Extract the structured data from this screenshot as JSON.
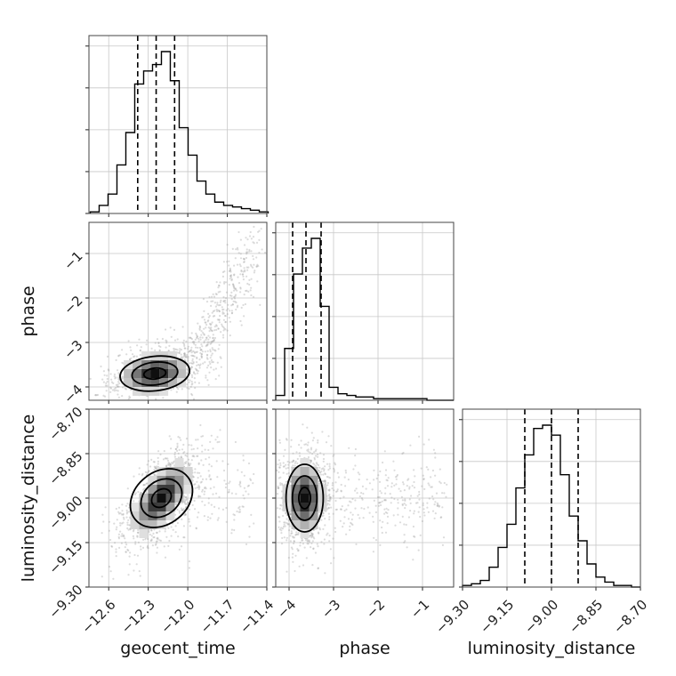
{
  "chart_data": {
    "type": "corner",
    "parameters": [
      "geocent_time",
      "phase",
      "luminosity_distance"
    ],
    "axes": {
      "geocent_time": {
        "label": "geocent_time",
        "range": [
          -12.75,
          -11.4
        ],
        "ticks": [
          -12.6,
          -12.3,
          -12.0,
          -11.7,
          -11.4
        ],
        "tick_labels": [
          "−12.6",
          "−12.3",
          "−12.0",
          "−11.7",
          "−11.4"
        ]
      },
      "phase": {
        "label": "phase",
        "range": [
          -4.3,
          -0.3
        ],
        "ticks": [
          -4,
          -3,
          -2,
          -1
        ],
        "tick_labels": [
          "−4",
          "−3",
          "−2",
          "−1"
        ]
      },
      "luminosity_distance": {
        "label": "luminosity_distance",
        "range": [
          -9.3,
          -8.7
        ],
        "ticks": [
          -9.3,
          -9.15,
          -9.0,
          -8.85,
          -8.7
        ],
        "tick_labels": [
          "−9.30",
          "−9.15",
          "−9.00",
          "−8.85",
          "−8.70"
        ]
      }
    },
    "marginals": {
      "geocent_time": {
        "bin_start": -12.74,
        "bin_width": 0.0675,
        "counts": [
          1,
          5,
          12,
          30,
          50,
          80,
          88,
          92,
          100,
          82,
          53,
          36,
          20,
          12,
          7,
          5,
          4,
          3,
          2,
          1
        ],
        "quantiles": [
          -12.38,
          -12.24,
          -12.1
        ]
      },
      "phase": {
        "bin_start": -4.3,
        "bin_width": 0.2,
        "counts": [
          3,
          32,
          78,
          94,
          100,
          58,
          8,
          4,
          3,
          2,
          2,
          1,
          1,
          1,
          1,
          1,
          1,
          0,
          0,
          0
        ],
        "quantiles": [
          -3.92,
          -3.62,
          -3.28
        ]
      },
      "luminosity_distance": {
        "bin_start": -9.3,
        "bin_width": 0.03,
        "counts": [
          1,
          2,
          4,
          12,
          24,
          38,
          60,
          80,
          96,
          98,
          92,
          68,
          43,
          28,
          14,
          6,
          3,
          1,
          1,
          0
        ],
        "quantiles": [
          -9.09,
          -9.0,
          -8.91
        ]
      }
    },
    "joint": [
      {
        "x": "geocent_time",
        "y": "phase",
        "peak": [
          -12.25,
          -3.7
        ],
        "spread": [
          0.13,
          0.22
        ],
        "correlation": 0.2
      },
      {
        "x": "geocent_time",
        "y": "luminosity_distance",
        "peak": [
          -12.2,
          -9.0
        ],
        "spread": [
          0.11,
          0.06
        ],
        "correlation": 0.65
      },
      {
        "x": "phase",
        "y": "luminosity_distance",
        "peak": [
          -3.65,
          -9.0
        ],
        "spread": [
          0.22,
          0.06
        ],
        "correlation": 0.0
      }
    ],
    "grid": true,
    "quantile_line_style": "dashed"
  },
  "colors": {
    "line": "#000000",
    "scatter": "#9a9a9a",
    "grid": "#c8c8c8"
  }
}
